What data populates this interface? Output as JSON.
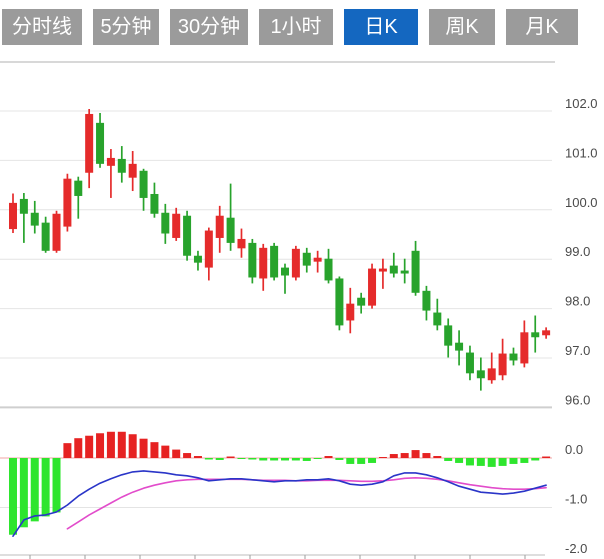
{
  "toolbar": {
    "tabs": [
      {
        "label": "分时线",
        "active": false
      },
      {
        "label": "5分钟",
        "active": false
      },
      {
        "label": "30分钟",
        "active": false
      },
      {
        "label": "1小时",
        "active": false
      },
      {
        "label": "日K",
        "active": true
      },
      {
        "label": "周K",
        "active": false
      },
      {
        "label": "月K",
        "active": false
      }
    ]
  },
  "colors": {
    "tab_inactive_bg": "#9b9b9b",
    "tab_active_bg": "#1467c0",
    "tab_text": "#ffffff",
    "candle_up": "#e52b2b",
    "candle_down": "#28a32c",
    "hist_positive": "#e62222",
    "hist_negative": "#2ee52e",
    "dif_line": "#2a35c8",
    "dea_line": "#e24ccb",
    "grid": "#e4e4e4",
    "panel_border": "#cfcfcf",
    "zero_line": "#f2a6a6",
    "axis_text": "#4a4a4a"
  },
  "chart_data": {
    "type": "candlestick",
    "panels": [
      "price_kline",
      "macd"
    ],
    "price_axis": {
      "labels": [
        "102.0",
        "101.0",
        "100.0",
        "99.0",
        "98.0",
        "97.0",
        "96.0"
      ],
      "values": [
        102.0,
        101.0,
        100.0,
        99.0,
        98.0,
        97.0,
        96.0
      ],
      "ylim": [
        95.9,
        102.3
      ],
      "position": "right",
      "grid": true
    },
    "macd_axis": {
      "labels": [
        "0.0",
        "-1.0",
        "-2.0"
      ],
      "values": [
        0.0,
        -1.0,
        -2.0
      ],
      "ylim": [
        -2.0,
        0.6
      ],
      "position": "right",
      "grid": true
    },
    "candles_format": "[open, high, low, close]",
    "candles": [
      [
        99.61,
        100.33,
        99.53,
        100.14
      ],
      [
        100.22,
        100.34,
        99.33,
        99.92
      ],
      [
        99.94,
        100.18,
        99.52,
        99.68
      ],
      [
        99.74,
        99.86,
        99.13,
        99.17
      ],
      [
        99.17,
        99.98,
        99.13,
        99.92
      ],
      [
        99.66,
        100.73,
        99.56,
        100.63
      ],
      [
        100.59,
        100.67,
        99.82,
        100.28
      ],
      [
        100.75,
        102.04,
        100.44,
        101.94
      ],
      [
        101.76,
        101.96,
        100.85,
        100.93
      ],
      [
        100.89,
        101.23,
        100.24,
        101.05
      ],
      [
        101.03,
        101.29,
        100.55,
        100.75
      ],
      [
        100.65,
        101.19,
        100.38,
        100.93
      ],
      [
        100.79,
        100.83,
        99.98,
        100.24
      ],
      [
        100.32,
        100.55,
        99.84,
        99.92
      ],
      [
        99.94,
        100.12,
        99.31,
        99.52
      ],
      [
        99.43,
        100.04,
        99.37,
        99.92
      ],
      [
        99.88,
        99.98,
        98.97,
        99.07
      ],
      [
        99.07,
        99.17,
        98.77,
        98.93
      ],
      [
        98.83,
        99.64,
        98.57,
        99.58
      ],
      [
        99.43,
        100.08,
        99.13,
        99.88
      ],
      [
        99.84,
        100.53,
        99.17,
        99.33
      ],
      [
        99.22,
        99.62,
        99.03,
        99.41
      ],
      [
        99.33,
        99.41,
        98.51,
        98.63
      ],
      [
        98.61,
        99.31,
        98.36,
        99.23
      ],
      [
        99.27,
        99.33,
        98.57,
        98.63
      ],
      [
        98.83,
        98.91,
        98.3,
        98.67
      ],
      [
        98.63,
        99.27,
        98.57,
        99.21
      ],
      [
        99.13,
        99.23,
        98.73,
        98.87
      ],
      [
        98.95,
        99.17,
        98.73,
        99.03
      ],
      [
        99.01,
        99.21,
        98.51,
        98.57
      ],
      [
        98.61,
        98.65,
        97.56,
        97.66
      ],
      [
        97.76,
        98.42,
        97.5,
        98.1
      ],
      [
        98.22,
        98.32,
        97.9,
        98.06
      ],
      [
        98.06,
        98.91,
        98.0,
        98.81
      ],
      [
        98.75,
        99.01,
        98.4,
        98.81
      ],
      [
        98.87,
        99.13,
        98.63,
        98.71
      ],
      [
        98.77,
        99.01,
        98.51,
        98.71
      ],
      [
        99.17,
        99.37,
        98.26,
        98.32
      ],
      [
        98.36,
        98.46,
        97.76,
        97.96
      ],
      [
        97.92,
        98.2,
        97.56,
        97.66
      ],
      [
        97.66,
        97.8,
        97.01,
        97.25
      ],
      [
        97.31,
        97.56,
        96.85,
        97.15
      ],
      [
        97.11,
        97.25,
        96.55,
        96.69
      ],
      [
        96.75,
        97.01,
        96.34,
        96.59
      ],
      [
        96.55,
        97.11,
        96.48,
        96.79
      ],
      [
        96.65,
        97.39,
        96.55,
        97.09
      ],
      [
        97.09,
        97.21,
        96.85,
        96.95
      ],
      [
        96.89,
        97.76,
        96.81,
        97.52
      ],
      [
        97.52,
        97.86,
        97.11,
        97.42
      ],
      [
        97.46,
        97.62,
        97.39,
        97.56
      ]
    ],
    "macd": {
      "histogram": [
        -1.55,
        -1.4,
        -1.28,
        -1.18,
        -1.1,
        0.3,
        0.4,
        0.45,
        0.5,
        0.53,
        0.53,
        0.48,
        0.39,
        0.32,
        0.25,
        0.17,
        0.1,
        0.04,
        -0.03,
        -0.04,
        0.03,
        -0.02,
        -0.03,
        -0.05,
        -0.05,
        -0.05,
        -0.05,
        -0.06,
        -0.02,
        0.04,
        -0.04,
        -0.12,
        -0.12,
        -0.1,
        0.02,
        0.08,
        0.1,
        0.16,
        0.1,
        0.04,
        -0.06,
        -0.1,
        -0.15,
        -0.16,
        -0.18,
        -0.16,
        -0.12,
        -0.1,
        -0.05,
        0.03
      ],
      "dif": [
        -1.58,
        -1.25,
        -1.17,
        -1.15,
        -1.09,
        -0.95,
        -0.77,
        -0.63,
        -0.51,
        -0.42,
        -0.34,
        -0.28,
        -0.26,
        -0.28,
        -0.3,
        -0.34,
        -0.36,
        -0.4,
        -0.46,
        -0.44,
        -0.42,
        -0.42,
        -0.44,
        -0.46,
        -0.48,
        -0.46,
        -0.46,
        -0.44,
        -0.44,
        -0.42,
        -0.46,
        -0.53,
        -0.55,
        -0.53,
        -0.48,
        -0.36,
        -0.3,
        -0.3,
        -0.34,
        -0.4,
        -0.48,
        -0.57,
        -0.63,
        -0.69,
        -0.71,
        -0.73,
        -0.71,
        -0.67,
        -0.61,
        -0.55
      ],
      "dea": [
        null,
        null,
        null,
        null,
        null,
        -1.43,
        -1.29,
        -1.15,
        -1.03,
        -0.91,
        -0.79,
        -0.69,
        -0.61,
        -0.55,
        -0.5,
        -0.46,
        -0.44,
        -0.43,
        -0.43,
        -0.43,
        -0.43,
        -0.43,
        -0.44,
        -0.45,
        -0.45,
        -0.45,
        -0.46,
        -0.46,
        -0.45,
        -0.45,
        -0.45,
        -0.46,
        -0.47,
        -0.47,
        -0.46,
        -0.44,
        -0.41,
        -0.4,
        -0.41,
        -0.43,
        -0.46,
        -0.5,
        -0.54,
        -0.57,
        -0.6,
        -0.62,
        -0.63,
        -0.63,
        -0.62,
        -0.6
      ]
    },
    "layout_hints": {
      "x_tick_positions": [
        30,
        85,
        140,
        195,
        250,
        305,
        360,
        415,
        470,
        525
      ],
      "first_candle_x": 13,
      "candle_spacing": 10.88,
      "grid_right_edge": 552,
      "legend": "none",
      "x_tick_labels_visible": false
    }
  }
}
